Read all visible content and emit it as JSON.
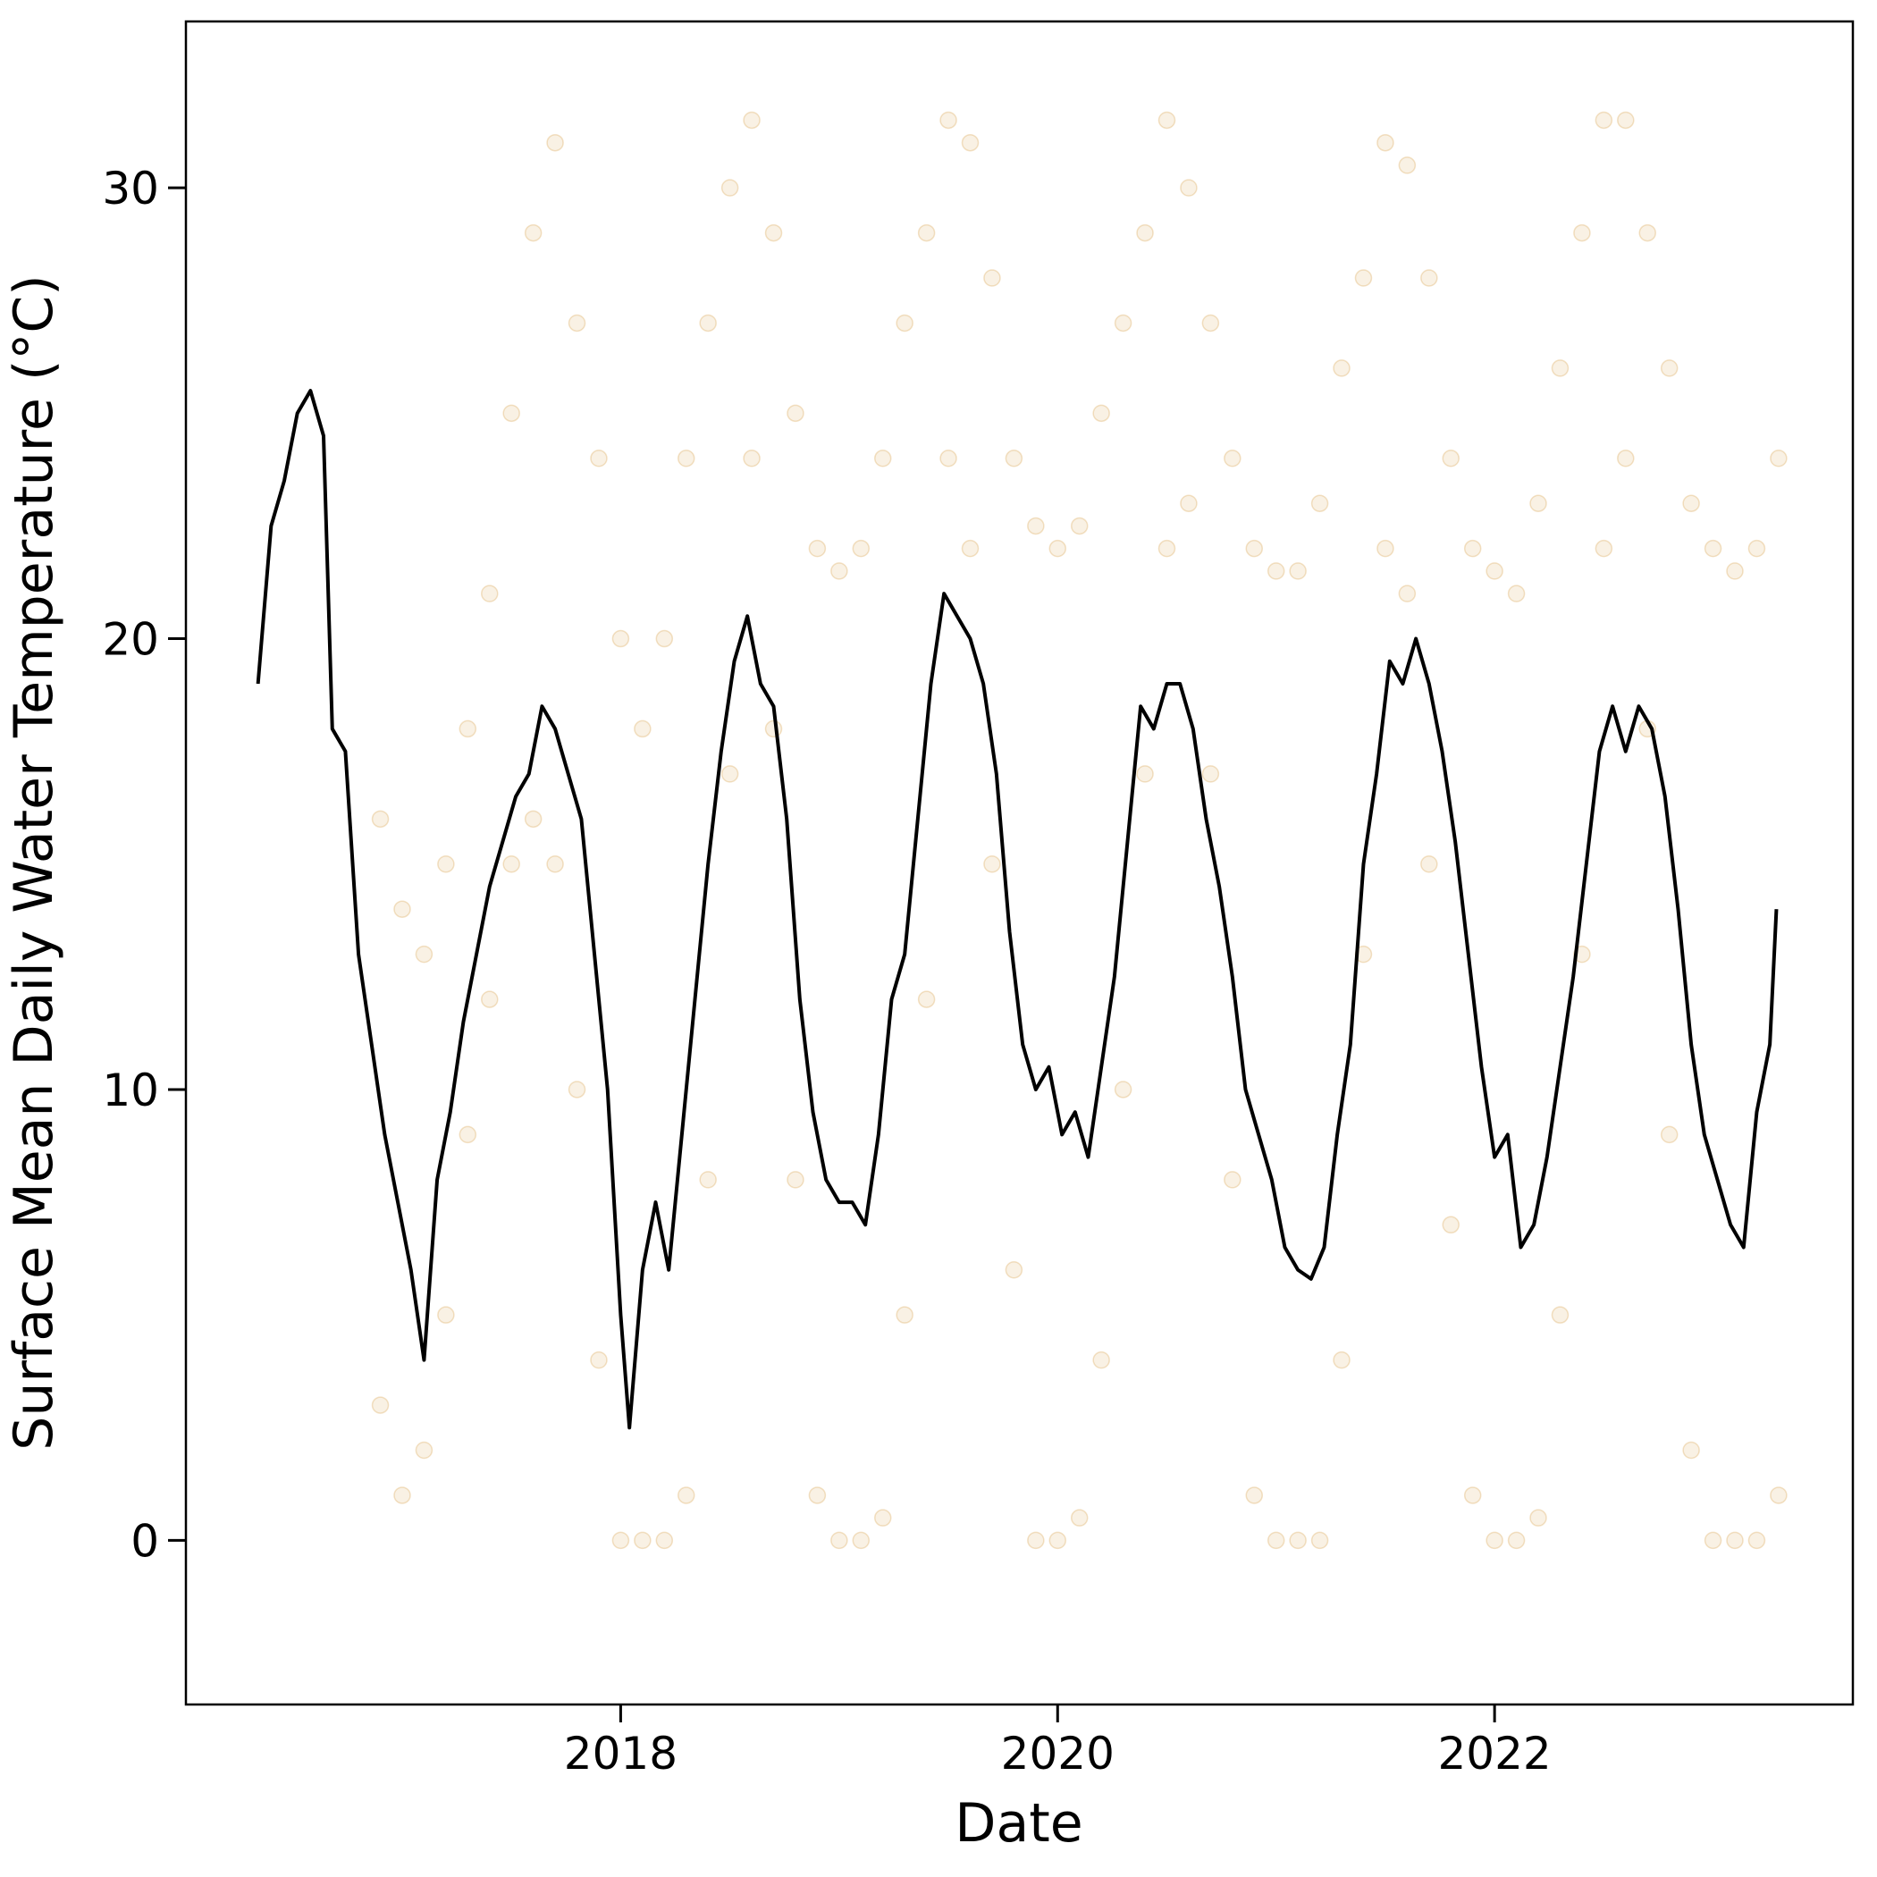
{
  "chart_data": {
    "type": "line",
    "x_label": "Date",
    "y_label": "Surface Mean Daily Water Temperature (°C)",
    "xlim": [
      2016.01,
      2023.64
    ],
    "ylim": [
      -3.64,
      33.69
    ],
    "xticks": [
      2018,
      2020,
      2022
    ],
    "yticks": [
      0,
      10,
      20,
      30
    ],
    "grid": false,
    "series": [
      {
        "type": "scatter",
        "color": "#d08c1e",
        "x": [
          2016.9,
          2017.0,
          2017.1,
          2017.2,
          2017.3,
          2017.4,
          2017.5,
          2017.6,
          2017.7,
          2017.8,
          2017.9,
          2018.0,
          2018.1,
          2018.2,
          2018.3,
          2018.4,
          2018.5,
          2018.6,
          2018.7,
          2018.8,
          2018.9,
          2019.0,
          2019.1,
          2019.2,
          2019.3,
          2019.4,
          2019.5,
          2019.6,
          2019.7,
          2019.8,
          2019.9,
          2020.0,
          2020.1,
          2020.2,
          2020.3,
          2020.4,
          2020.5,
          2020.6,
          2020.7,
          2020.8,
          2020.9,
          2021.0,
          2021.1,
          2021.2,
          2021.3,
          2021.4,
          2021.5,
          2021.6,
          2021.7,
          2021.8,
          2021.9,
          2022.0,
          2022.1,
          2022.2,
          2022.3,
          2022.4,
          2022.5,
          2022.6,
          2022.7,
          2022.8,
          2022.9,
          2023.0,
          2023.1,
          2023.2,
          2023.3,
          2016.9,
          2017.0,
          2017.1,
          2017.2,
          2017.3,
          2017.4,
          2017.5,
          2017.6,
          2017.7,
          2017.8,
          2017.9,
          2018.0,
          2018.1,
          2018.2,
          2018.3,
          2018.4,
          2018.5,
          2018.6,
          2018.7,
          2018.8,
          2018.9,
          2019.0,
          2019.1,
          2019.2,
          2019.3,
          2019.4,
          2019.5,
          2019.6,
          2019.7,
          2019.8,
          2019.9,
          2020.0,
          2020.1,
          2020.2,
          2020.3,
          2020.4,
          2020.5,
          2020.6,
          2020.7,
          2020.8,
          2020.9,
          2021.0,
          2021.1,
          2021.2,
          2021.3,
          2021.4,
          2021.5,
          2021.6,
          2021.7,
          2021.8,
          2021.9,
          2022.0,
          2022.1,
          2022.2,
          2022.3,
          2022.4,
          2022.5,
          2022.6,
          2022.7,
          2022.8,
          2022.9,
          2023.0,
          2023.1,
          2023.2,
          2023.3
        ],
        "values": [
          16,
          14,
          13,
          15,
          18,
          21,
          25,
          29,
          31,
          27,
          24,
          20,
          18,
          20,
          24,
          27,
          30,
          31.5,
          29,
          25,
          22,
          21.5,
          22,
          24,
          27,
          29,
          31.5,
          31,
          28,
          24,
          22.5,
          22,
          22.5,
          25,
          27,
          29,
          31.5,
          30,
          27,
          24,
          22,
          21.5,
          21.5,
          23,
          26,
          28,
          31,
          30.5,
          28,
          24,
          22,
          21.5,
          21,
          23,
          26,
          29,
          31.5,
          31.5,
          29,
          26,
          23,
          22,
          21.5,
          22,
          24,
          3,
          1,
          2,
          5,
          9,
          12,
          15,
          16,
          15,
          10,
          4,
          0,
          0,
          0,
          1,
          8,
          17,
          24,
          18,
          8,
          1,
          0,
          0,
          0.5,
          5,
          12,
          24,
          22,
          15,
          6,
          0,
          0,
          0.5,
          4,
          10,
          17,
          22,
          23,
          17,
          8,
          1,
          0,
          0,
          0,
          4,
          13,
          22,
          21,
          15,
          7,
          1,
          0,
          0,
          0.5,
          5,
          13,
          22,
          24,
          18,
          9,
          2,
          0,
          0,
          0,
          1
        ]
      },
      {
        "type": "line",
        "color": "#000000",
        "x": [
          2016.34,
          2016.4,
          2016.46,
          2016.52,
          2016.58,
          2016.64,
          2016.68,
          2016.74,
          2016.8,
          2016.86,
          2016.92,
          2016.98,
          2017.04,
          2017.1,
          2017.16,
          2017.22,
          2017.28,
          2017.34,
          2017.4,
          2017.46,
          2017.52,
          2017.58,
          2017.64,
          2017.7,
          2017.76,
          2017.82,
          2017.88,
          2017.94,
          2018.0,
          2018.04,
          2018.1,
          2018.16,
          2018.22,
          2018.28,
          2018.34,
          2018.4,
          2018.46,
          2018.52,
          2018.58,
          2018.64,
          2018.7,
          2018.76,
          2018.82,
          2018.88,
          2018.94,
          2019.0,
          2019.06,
          2019.12,
          2019.18,
          2019.24,
          2019.3,
          2019.36,
          2019.42,
          2019.48,
          2019.54,
          2019.6,
          2019.66,
          2019.72,
          2019.78,
          2019.84,
          2019.9,
          2019.96,
          2020.02,
          2020.08,
          2020.14,
          2020.2,
          2020.26,
          2020.32,
          2020.38,
          2020.44,
          2020.5,
          2020.56,
          2020.62,
          2020.68,
          2020.74,
          2020.8,
          2020.86,
          2020.92,
          2020.98,
          2021.04,
          2021.1,
          2021.16,
          2021.22,
          2021.28,
          2021.34,
          2021.4,
          2021.46,
          2021.52,
          2021.58,
          2021.64,
          2021.7,
          2021.76,
          2021.82,
          2021.88,
          2021.94,
          2022.0,
          2022.06,
          2022.12,
          2022.18,
          2022.24,
          2022.3,
          2022.36,
          2022.42,
          2022.48,
          2022.54,
          2022.6,
          2022.66,
          2022.72,
          2022.78,
          2022.84,
          2022.9,
          2022.96,
          2023.02,
          2023.08,
          2023.14,
          2023.2,
          2023.26,
          2023.29
        ],
        "values": [
          19.0,
          22.5,
          23.5,
          25.0,
          25.5,
          24.5,
          18.0,
          17.5,
          13.0,
          11.0,
          9.0,
          7.5,
          6.0,
          4.0,
          8.0,
          9.5,
          11.5,
          13.0,
          14.5,
          15.5,
          16.5,
          17.0,
          18.5,
          18.0,
          17.0,
          16.0,
          13.0,
          10.0,
          5.0,
          2.5,
          6.0,
          7.5,
          6.0,
          9.0,
          12.0,
          15.0,
          17.5,
          19.5,
          20.5,
          19.0,
          18.5,
          16.0,
          12.0,
          9.5,
          8.0,
          7.5,
          7.5,
          7.0,
          9.0,
          12.0,
          13.0,
          16.0,
          19.0,
          21.0,
          20.5,
          20.0,
          19.0,
          17.0,
          13.5,
          11.0,
          10.0,
          10.5,
          9.0,
          9.5,
          8.5,
          10.5,
          12.5,
          15.5,
          18.5,
          18.0,
          19.0,
          19.0,
          18.0,
          16.0,
          14.5,
          12.5,
          10.0,
          9.0,
          8.0,
          6.5,
          6.0,
          5.8,
          6.5,
          9.0,
          11.0,
          15.0,
          17.0,
          19.5,
          19.0,
          20.0,
          19.0,
          17.5,
          15.5,
          13.0,
          10.5,
          8.5,
          9.0,
          6.5,
          7.0,
          8.5,
          10.5,
          12.5,
          15.0,
          17.5,
          18.5,
          17.5,
          18.5,
          18.0,
          16.5,
          14.0,
          11.0,
          9.0,
          8.0,
          7.0,
          6.5,
          9.5,
          11.0,
          14.0
        ]
      }
    ]
  }
}
